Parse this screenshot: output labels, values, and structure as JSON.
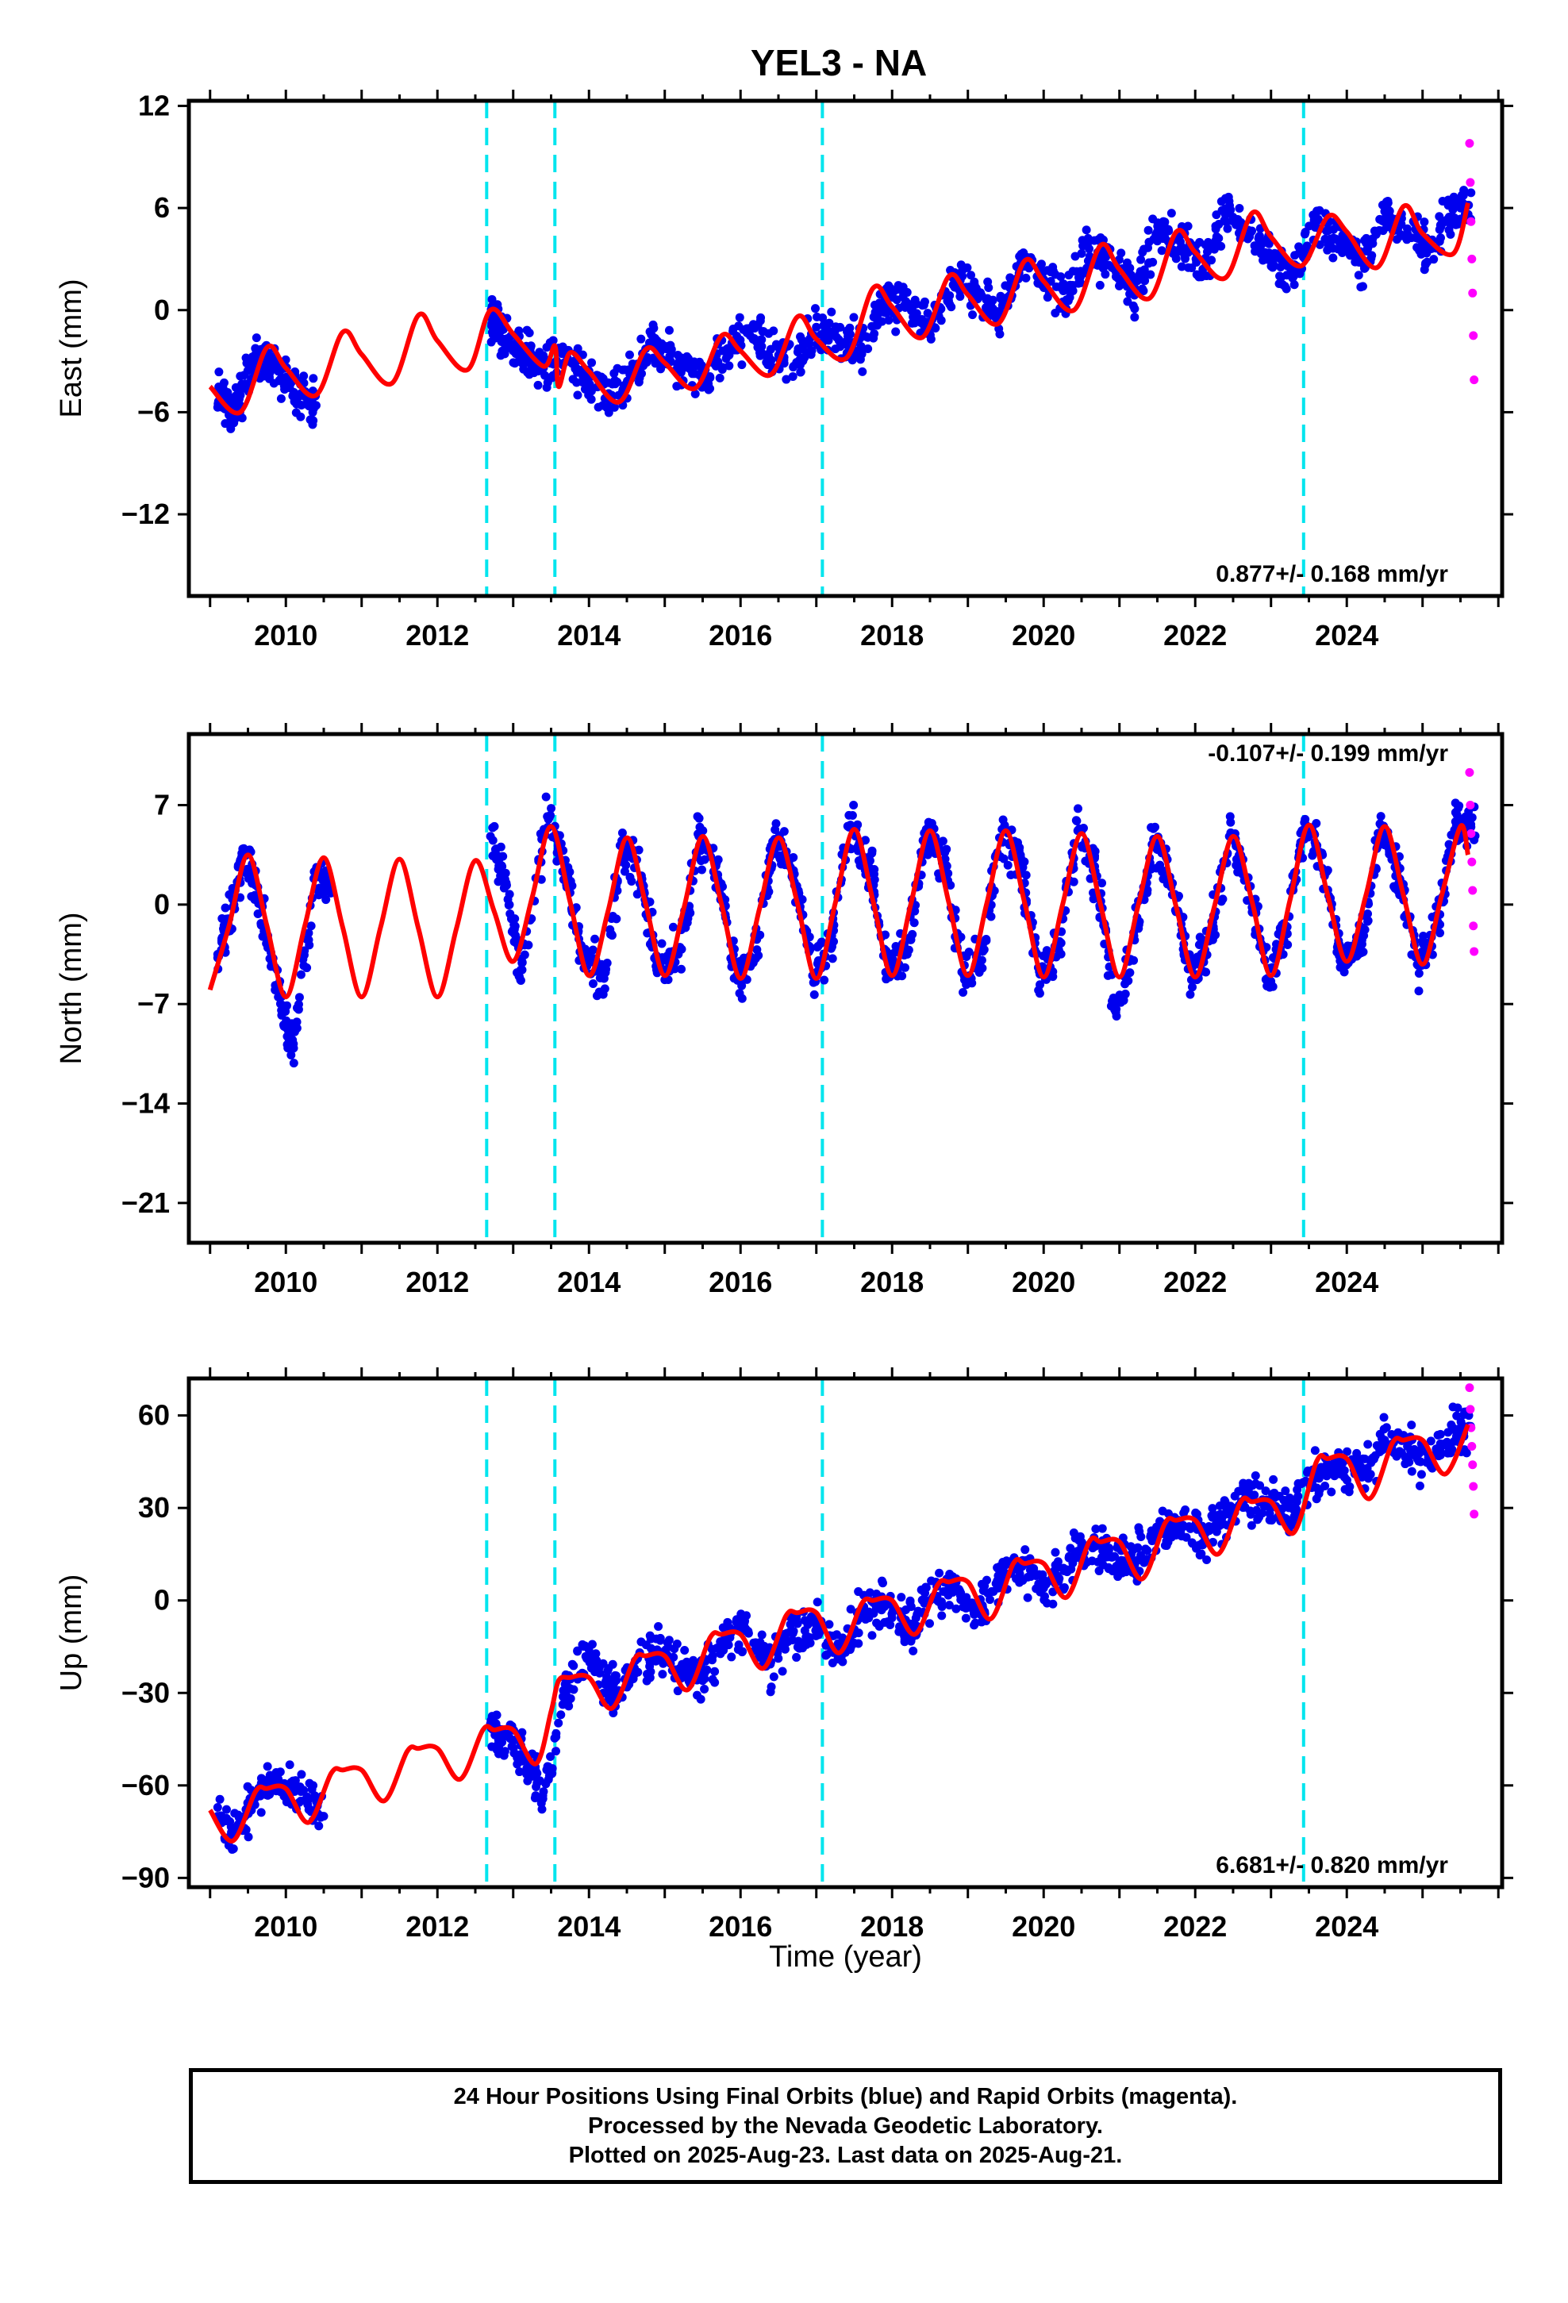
{
  "colors": {
    "final": "#0000ee",
    "rapid": "#ff00ff",
    "model": "#ff0000",
    "event_line": "#00e5ee"
  },
  "footer": {
    "line1": "24 Hour Positions Using Final Orbits (blue) and Rapid Orbits (magenta).",
    "line2": "Processed by the Nevada Geodetic Laboratory.",
    "line3": "Plotted on 2025-Aug-23. Last data on 2025-Aug-21."
  },
  "chart_data": {
    "type": "scatter",
    "title": "YEL3 - NA",
    "xlabel": "Time (year)",
    "xlim": [
      2008.72,
      2026.05
    ],
    "xticks": [
      2010,
      2012,
      2014,
      2016,
      2018,
      2020,
      2022,
      2024
    ],
    "event_lines_year": [
      2012.65,
      2013.55,
      2017.08,
      2023.43
    ],
    "panels": [
      {
        "id": "east",
        "ylabel": "East (mm)",
        "ylim": [
          -16.8,
          12.3
        ],
        "yticks": [
          12,
          6,
          0,
          -6,
          -12
        ],
        "ytick_labels": [
          "12",
          "6",
          "0",
          "−6",
          "−12"
        ],
        "rate_text": "0.877+/- 0.168 mm/yr",
        "rate_position": "bottom-right",
        "series": [
          {
            "name": "Final Orbits",
            "color": "#0000ee",
            "x": [
              2009.1,
              2009.2,
              2009.3,
              2009.4,
              2009.6,
              2009.8,
              2010.0,
              2010.2,
              2010.4,
              2012.7,
              2012.8,
              2013.0,
              2013.2,
              2013.4,
              2013.8,
              2014.0,
              2014.3,
              2014.6,
              2014.9,
              2015.2,
              2015.5,
              2015.8,
              2016.1,
              2016.4,
              2016.7,
              2017.0,
              2017.3,
              2017.6,
              2017.9,
              2018.2,
              2018.5,
              2018.8,
              2019.1,
              2019.4,
              2019.7,
              2020.0,
              2020.3,
              2020.6,
              2020.9,
              2021.2,
              2021.5,
              2021.8,
              2022.1,
              2022.4,
              2022.7,
              2023.0,
              2023.3,
              2023.6,
              2023.9,
              2024.2,
              2024.5,
              2024.8,
              2025.1,
              2025.4
            ],
            "y": [
              -4.8,
              -5.5,
              -6.2,
              -5.0,
              -2.6,
              -3.3,
              -4.1,
              -4.9,
              -5.6,
              -0.4,
              -1.0,
              -2.0,
              -2.6,
              -3.4,
              -3.0,
              -4.0,
              -5.0,
              -3.5,
              -2.1,
              -3.1,
              -4.2,
              -2.4,
              -1.2,
              -2.3,
              -3.3,
              -1.0,
              -1.8,
              -2.3,
              0.8,
              0.2,
              -1.0,
              1.9,
              1.0,
              -0.2,
              2.8,
              1.8,
              0.6,
              3.6,
              2.5,
              1.3,
              4.6,
              3.6,
              2.4,
              5.6,
              4.7,
              3.2,
              2.0,
              5.2,
              4.0,
              2.8,
              5.8,
              4.5,
              3.6,
              5.9
            ]
          },
          {
            "name": "Rapid Orbits",
            "color": "#ff00ff",
            "x": [
              2025.62,
              2025.63,
              2025.64,
              2025.65,
              2025.66,
              2025.67,
              2025.68
            ],
            "y": [
              9.8,
              7.5,
              5.2,
              3.0,
              1.0,
              -1.5,
              -4.1
            ]
          }
        ],
        "model_curve": {
          "name": "model",
          "color": "#ff0000",
          "x": [
            2009.0,
            2009.4,
            2009.75,
            2010.0,
            2010.4,
            2010.75,
            2011.0,
            2011.4,
            2011.75,
            2012.0,
            2012.4,
            2012.7,
            2013.0,
            2013.4,
            2013.55,
            2013.6,
            2013.75,
            2014.0,
            2014.4,
            2014.75,
            2015.0,
            2015.4,
            2015.75,
            2016.0,
            2016.4,
            2016.75,
            2017.0,
            2017.4,
            2017.75,
            2018.0,
            2018.4,
            2018.75,
            2019.0,
            2019.4,
            2019.75,
            2020.0,
            2020.4,
            2020.75,
            2021.0,
            2021.4,
            2021.75,
            2022.0,
            2022.4,
            2022.75,
            2023.0,
            2023.4,
            2023.75,
            2024.0,
            2024.4,
            2024.75,
            2025.0,
            2025.4,
            2025.6
          ],
          "y": [
            -4.5,
            -6.0,
            -2.2,
            -3.4,
            -5.0,
            -1.3,
            -2.6,
            -4.3,
            -0.3,
            -1.8,
            -3.5,
            0.0,
            -1.4,
            -3.3,
            -2.1,
            -4.5,
            -2.5,
            -3.6,
            -5.4,
            -2.3,
            -3.1,
            -4.6,
            -1.5,
            -2.4,
            -3.8,
            -0.4,
            -1.7,
            -2.8,
            1.3,
            0.2,
            -1.6,
            2.0,
            0.9,
            -0.8,
            2.9,
            1.7,
            0.0,
            3.8,
            2.4,
            0.7,
            4.6,
            3.4,
            1.9,
            5.7,
            4.3,
            2.6,
            5.5,
            4.6,
            2.5,
            6.1,
            4.5,
            3.3,
            6.3
          ]
        }
      },
      {
        "id": "north",
        "ylabel": "North (mm)",
        "ylim": [
          -23.8,
          12.0
        ],
        "yticks": [
          7,
          0,
          -7,
          -14,
          -21
        ],
        "ytick_labels": [
          "7",
          "0",
          "−7",
          "−14",
          "−21"
        ],
        "rate_text": "-0.107+/- 0.199 mm/yr",
        "rate_position": "top-right",
        "series": [
          {
            "name": "Final Orbits",
            "color": "#0000ee",
            "x": [
              2009.1,
              2009.25,
              2009.45,
              2009.65,
              2009.9,
              2010.1,
              2010.4,
              2010.6,
              2012.7,
              2012.9,
              2013.1,
              2013.45,
              2013.7,
              2013.9,
              2014.2,
              2014.45,
              2014.7,
              2014.9,
              2015.2,
              2015.45,
              2015.7,
              2015.95,
              2016.2,
              2016.45,
              2016.7,
              2016.95,
              2017.2,
              2017.45,
              2017.7,
              2017.95,
              2018.2,
              2018.45,
              2018.7,
              2018.95,
              2019.2,
              2019.45,
              2019.7,
              2019.95,
              2020.2,
              2020.45,
              2020.7,
              2020.95,
              2021.2,
              2021.45,
              2021.7,
              2021.95,
              2022.2,
              2022.45,
              2022.7,
              2022.95,
              2023.2,
              2023.45,
              2023.7,
              2023.95,
              2024.2,
              2024.45,
              2024.7,
              2024.95,
              2025.2,
              2025.45
            ],
            "y": [
              -3.5,
              -1.0,
              3.8,
              0.5,
              -6.5,
              -9.8,
              2.5,
              1.0,
              4.8,
              1.5,
              -4.6,
              6.2,
              2.0,
              -3.5,
              -5.2,
              4.5,
              1.8,
              -4.8,
              -3.0,
              4.9,
              2.1,
              -5.0,
              -3.8,
              4.6,
              2.4,
              -5.0,
              -2.5,
              5.6,
              2.6,
              -4.2,
              -3.5,
              5.3,
              2.8,
              -5.0,
              -3.1,
              5.3,
              2.9,
              -4.9,
              -3.2,
              5.2,
              2.0,
              -7.5,
              -2.5,
              4.6,
              1.5,
              -5.3,
              -2.5,
              4.8,
              1.9,
              -5.2,
              -1.5,
              6.0,
              2.2,
              -4.0,
              -2.5,
              5.6,
              1.8,
              -4.3,
              -1.2,
              5.8
            ]
          },
          {
            "name": "Rapid Orbits",
            "color": "#ff00ff",
            "x": [
              2025.62,
              2025.63,
              2025.64,
              2025.65,
              2025.66,
              2025.67,
              2025.68
            ],
            "y": [
              9.3,
              7.0,
              5.0,
              3.0,
              1.0,
              -1.5,
              -3.3
            ]
          }
        ],
        "model_curve": {
          "name": "model",
          "color": "#ff0000",
          "x": [
            2009.0,
            2009.25,
            2009.5,
            2009.75,
            2010.0,
            2010.25,
            2010.5,
            2010.75,
            2011.0,
            2011.25,
            2011.5,
            2011.75,
            2012.0,
            2012.25,
            2012.5,
            2012.75,
            2013.0,
            2013.25,
            2013.5,
            2013.75,
            2014.0,
            2014.25,
            2014.5,
            2014.75,
            2015.0,
            2015.25,
            2015.5,
            2015.75,
            2016.0,
            2016.25,
            2016.5,
            2016.75,
            2017.0,
            2017.25,
            2017.5,
            2017.75,
            2018.0,
            2018.25,
            2018.5,
            2018.75,
            2019.0,
            2019.25,
            2019.5,
            2019.75,
            2020.0,
            2020.25,
            2020.5,
            2020.75,
            2021.0,
            2021.25,
            2021.5,
            2021.75,
            2022.0,
            2022.25,
            2022.5,
            2022.75,
            2023.0,
            2023.25,
            2023.5,
            2023.75,
            2024.0,
            2024.25,
            2024.5,
            2024.75,
            2025.0,
            2025.25,
            2025.5,
            2025.6
          ],
          "y": [
            -6.0,
            -1.5,
            3.5,
            -1.5,
            -6.5,
            -1.5,
            3.3,
            -1.6,
            -6.5,
            -1.6,
            3.2,
            -1.7,
            -6.5,
            -1.7,
            3.1,
            -0.5,
            -4.0,
            0.5,
            5.5,
            0.2,
            -5.0,
            -0.5,
            4.7,
            0.0,
            -5.0,
            -0.3,
            4.8,
            0.0,
            -5.2,
            -0.3,
            4.7,
            0.1,
            -5.2,
            0.1,
            5.3,
            0.2,
            -5.0,
            0.1,
            5.2,
            0.1,
            -5.0,
            0.1,
            5.2,
            0.1,
            -5.1,
            0.0,
            5.0,
            0.0,
            -5.1,
            0.0,
            4.8,
            -0.2,
            -5.1,
            -0.2,
            4.8,
            0.2,
            -5.0,
            0.3,
            5.6,
            0.6,
            -4.0,
            0.6,
            5.5,
            0.6,
            -4.2,
            0.6,
            5.5,
            3.5
          ]
        }
      },
      {
        "id": "up",
        "ylabel": "Up (mm)",
        "ylim": [
          -93.0,
          72.0
        ],
        "yticks": [
          60,
          30,
          0,
          -30,
          -60,
          -90
        ],
        "ytick_labels": [
          "60",
          "30",
          "0",
          "−30",
          "−60",
          "−90"
        ],
        "rate_text": "6.681+/- 0.820 mm/yr",
        "rate_position": "bottom-right",
        "series": [
          {
            "name": "Final Orbits",
            "color": "#0000ee",
            "x": [
              2009.1,
              2009.3,
              2009.6,
              2009.9,
              2010.2,
              2010.5,
              2012.7,
              2012.9,
              2013.2,
              2013.4,
              2013.7,
              2014.0,
              2014.3,
              2014.6,
              2014.9,
              2015.2,
              2015.5,
              2015.8,
              2016.1,
              2016.4,
              2016.7,
              2017.0,
              2017.3,
              2017.6,
              2017.9,
              2018.2,
              2018.5,
              2018.8,
              2019.1,
              2019.4,
              2019.7,
              2020.0,
              2020.3,
              2020.6,
              2020.9,
              2021.2,
              2021.5,
              2021.8,
              2022.1,
              2022.4,
              2022.7,
              2023.0,
              2023.3,
              2023.6,
              2023.9,
              2024.2,
              2024.5,
              2024.8,
              2025.1,
              2025.4
            ],
            "y": [
              -70,
              -76,
              -64,
              -58,
              -62,
              -70,
              -40,
              -44,
              -52,
              -62,
              -28,
              -18,
              -30,
              -22,
              -16,
              -22,
              -26,
              -13,
              -10,
              -20,
              -10,
              -8,
              -18,
              -4,
              -2,
              -10,
              0,
              4,
              -4,
              8,
              12,
              4,
              10,
              18,
              14,
              12,
              22,
              24,
              18,
              28,
              34,
              30,
              30,
              42,
              44,
              40,
              52,
              50,
              44,
              56
            ]
          },
          {
            "name": "Rapid Orbits",
            "color": "#ff00ff",
            "x": [
              2025.62,
              2025.63,
              2025.64,
              2025.65,
              2025.66,
              2025.67,
              2025.68
            ],
            "y": [
              69,
              62,
              56,
              50,
              44,
              37,
              28
            ]
          }
        ],
        "model_curve": {
          "name": "model",
          "color": "#ff0000",
          "x": [
            2009.0,
            2009.3,
            2009.6,
            2009.75,
            2010.0,
            2010.3,
            2010.6,
            2010.75,
            2011.0,
            2011.3,
            2011.6,
            2011.75,
            2012.0,
            2012.3,
            2012.6,
            2012.75,
            2013.0,
            2013.3,
            2013.5,
            2013.6,
            2013.75,
            2014.0,
            2014.3,
            2014.6,
            2014.75,
            2015.0,
            2015.3,
            2015.6,
            2015.75,
            2016.0,
            2016.3,
            2016.6,
            2016.75,
            2017.0,
            2017.3,
            2017.6,
            2017.75,
            2018.0,
            2018.3,
            2018.6,
            2018.75,
            2019.0,
            2019.3,
            2019.6,
            2019.75,
            2020.0,
            2020.3,
            2020.6,
            2020.75,
            2021.0,
            2021.3,
            2021.6,
            2021.75,
            2022.0,
            2022.3,
            2022.6,
            2022.75,
            2023.0,
            2023.3,
            2023.6,
            2023.75,
            2024.0,
            2024.3,
            2024.6,
            2024.75,
            2025.0,
            2025.3,
            2025.6
          ],
          "y": [
            -68,
            -78,
            -62,
            -61,
            -61,
            -72,
            -56,
            -55,
            -55,
            -65,
            -49,
            -48,
            -48,
            -58,
            -42,
            -42,
            -42,
            -53,
            -36,
            -26,
            -25,
            -25,
            -35,
            -19,
            -18,
            -18,
            -29,
            -12,
            -11,
            -11,
            -22,
            -5,
            -4,
            -4,
            -17,
            -1,
            0,
            0,
            -11,
            5,
            6,
            6,
            -6,
            12,
            12,
            12,
            1,
            19,
            19,
            19,
            7,
            25,
            26,
            26,
            15,
            32,
            32,
            32,
            22,
            45,
            46,
            46,
            33,
            51,
            52,
            52,
            41,
            57
          ]
        }
      }
    ]
  }
}
